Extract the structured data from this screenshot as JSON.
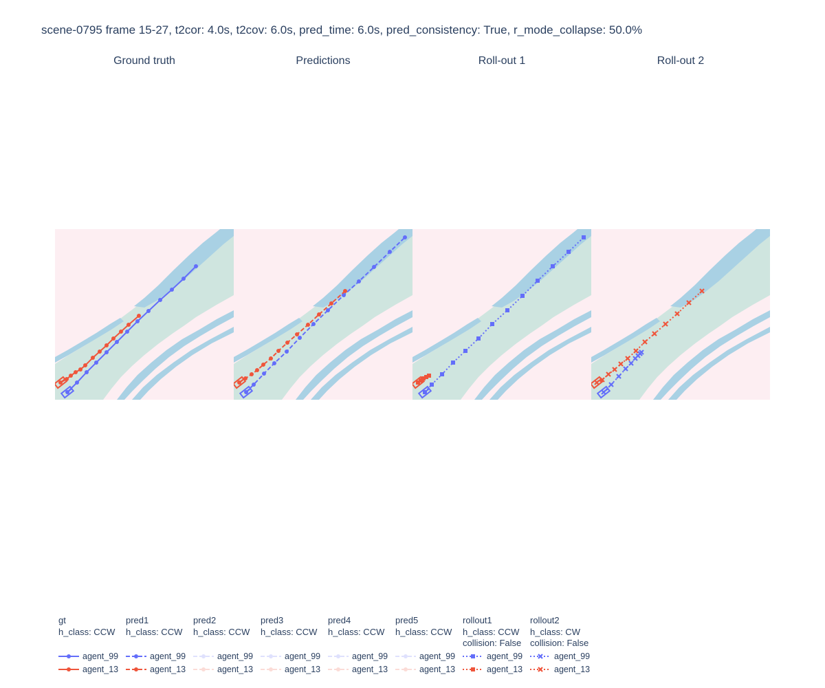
{
  "figure": {
    "title": "scene-0795 frame 15-27, t2cor: 4.0s, t2cov: 6.0s, pred_time: 6.0s, pred_consistency: True, r_mode_collapse: 50.0%"
  },
  "colors": {
    "agent_99": "#636efa",
    "agent_13": "#ef553b",
    "background": "#fdeef2",
    "drivable": "#cfe5df",
    "lane_divider": "#a9d1e4"
  },
  "chart_data": [
    {
      "type": "scatter",
      "subplot_title": "Ground truth",
      "series": [
        {
          "name": "agent_99",
          "group": "gt",
          "line": "solid",
          "marker": "circle",
          "x": [
            98,
            112,
            126,
            140,
            155,
            170,
            185,
            200,
            216,
            233,
            250,
            267,
            285
          ],
          "y": [
            570,
            556,
            541,
            527,
            512,
            497,
            482,
            467,
            452,
            436,
            421,
            405,
            387
          ]
        },
        {
          "name": "agent_13",
          "group": "gt",
          "line": "solid",
          "marker": "circle",
          "x": [
            88,
            97,
            103,
            110,
            117,
            124,
            135,
            145,
            155,
            165,
            176,
            187,
            202
          ],
          "y": [
            556,
            551,
            546,
            541,
            537,
            531,
            520,
            511,
            502,
            492,
            482,
            472,
            459
          ]
        }
      ]
    },
    {
      "type": "scatter",
      "subplot_title": "Predictions",
      "series": [
        {
          "name": "agent_99",
          "group": "pred1",
          "line": "dash",
          "marker": "circle",
          "x": [
            358,
            369,
            384,
            399,
            417,
            436,
            456,
            477,
            500,
            522,
            544,
            567,
            589
          ],
          "y": [
            570,
            559,
            543,
            528,
            511,
            491,
            471,
            451,
            429,
            409,
            388,
            366,
            345
          ]
        },
        {
          "name": "agent_13",
          "group": "pred1",
          "line": "dash",
          "marker": "circle",
          "x": [
            348,
            357,
            366,
            374,
            383,
            394,
            405,
            418,
            432,
            448,
            464,
            482,
            502
          ],
          "y": [
            556,
            550,
            544,
            538,
            530,
            521,
            510,
            498,
            486,
            472,
            457,
            441,
            423
          ]
        }
      ]
    },
    {
      "type": "scatter",
      "subplot_title": "Roll-out 1",
      "series": [
        {
          "name": "agent_99",
          "group": "rollout1",
          "line": "dot",
          "marker": "square",
          "x": [
            618,
            628,
            643,
            659,
            677,
            696,
            716,
            738,
            760,
            782,
            804,
            827,
            849
          ],
          "y": [
            570,
            559,
            544,
            527,
            510,
            492,
            471,
            451,
            430,
            408,
            387,
            366,
            345
          ]
        },
        {
          "name": "agent_13",
          "group": "rollout1",
          "line": "dot",
          "marker": "square",
          "x": [
            608,
            612,
            616,
            620,
            624
          ],
          "y": [
            556,
            553,
            550,
            548,
            546
          ]
        }
      ]
    },
    {
      "type": "scatter",
      "subplot_title": "Roll-out 2",
      "series": [
        {
          "name": "agent_99",
          "group": "rollout2",
          "line": "dot",
          "marker": "x",
          "x": [
            878,
            889,
            900,
            910,
            918,
            924,
            928,
            931,
            933
          ],
          "y": [
            570,
            559,
            547,
            536,
            528,
            521,
            517,
            514,
            512
          ]
        },
        {
          "name": "agent_13",
          "group": "rollout2",
          "line": "dot",
          "marker": "x",
          "x": [
            868,
            876,
            885,
            894,
            903,
            913,
            925,
            938,
            952,
            968,
            985,
            1002,
            1021
          ],
          "y": [
            556,
            552,
            544,
            537,
            529,
            521,
            510,
            497,
            485,
            471,
            456,
            440,
            423
          ]
        }
      ]
    }
  ],
  "legend": [
    {
      "group": "gt",
      "lines": [
        "gt",
        "h_class: CCW"
      ],
      "dash": "solid",
      "marker": "circle",
      "faded": false,
      "items": [
        {
          "name": "agent_99"
        },
        {
          "name": "agent_13"
        }
      ]
    },
    {
      "group": "pred1",
      "lines": [
        "pred1",
        "h_class: CCW"
      ],
      "dash": "dash",
      "marker": "circle",
      "faded": false,
      "items": [
        {
          "name": "agent_99"
        },
        {
          "name": "agent_13"
        }
      ]
    },
    {
      "group": "pred2",
      "lines": [
        "pred2",
        "h_class: CCW"
      ],
      "dash": "dash",
      "marker": "circle",
      "faded": true,
      "items": [
        {
          "name": "agent_99"
        },
        {
          "name": "agent_13"
        }
      ]
    },
    {
      "group": "pred3",
      "lines": [
        "pred3",
        "h_class: CCW"
      ],
      "dash": "dash",
      "marker": "circle",
      "faded": true,
      "items": [
        {
          "name": "agent_99"
        },
        {
          "name": "agent_13"
        }
      ]
    },
    {
      "group": "pred4",
      "lines": [
        "pred4",
        "h_class: CCW"
      ],
      "dash": "dash",
      "marker": "circle",
      "faded": true,
      "items": [
        {
          "name": "agent_99"
        },
        {
          "name": "agent_13"
        }
      ]
    },
    {
      "group": "pred5",
      "lines": [
        "pred5",
        "h_class: CCW"
      ],
      "dash": "dash",
      "marker": "circle",
      "faded": true,
      "items": [
        {
          "name": "agent_99"
        },
        {
          "name": "agent_13"
        }
      ]
    },
    {
      "group": "rollout1",
      "lines": [
        "rollout1",
        "h_class: CCW",
        "collision: False"
      ],
      "dash": "dot",
      "marker": "square",
      "faded": false,
      "items": [
        {
          "name": "agent_99"
        },
        {
          "name": "agent_13"
        }
      ]
    },
    {
      "group": "rollout2",
      "lines": [
        "rollout2",
        "h_class: CW",
        "collision: False"
      ],
      "dash": "dot",
      "marker": "x",
      "faded": false,
      "items": [
        {
          "name": "agent_99"
        },
        {
          "name": "agent_13"
        }
      ]
    }
  ]
}
